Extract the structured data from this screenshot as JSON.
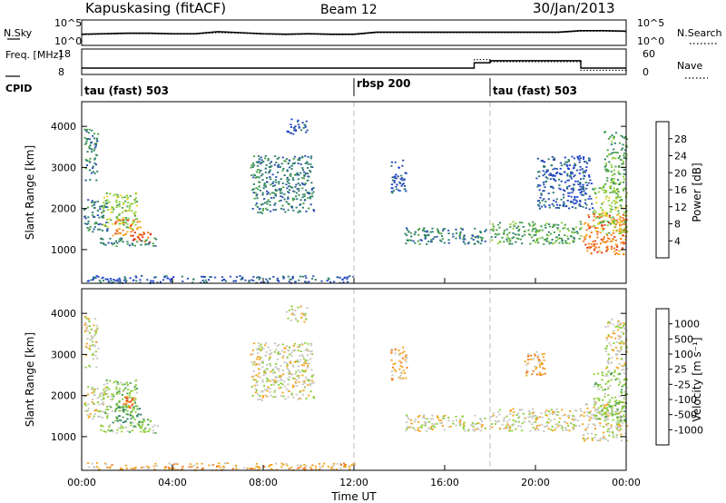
{
  "header": {
    "station": "Kapuskasing (fitACF)",
    "beam": "Beam 12",
    "date": "30/Jan/2013"
  },
  "chart_data": [
    {
      "type": "line",
      "panel": "noise",
      "left_label": "N.Sky",
      "right_label": "N.Search",
      "left_ticks": [
        "10^5",
        "10^0"
      ],
      "right_ticks": [
        "10^5",
        "10^0"
      ],
      "x": [
        "00:00",
        "01:00",
        "02:00",
        "03:00",
        "04:00",
        "05:00",
        "06:00",
        "07:00",
        "08:00",
        "09:00",
        "10:00",
        "11:00",
        "12:00",
        "13:00",
        "14:00",
        "15:00",
        "16:00",
        "17:00",
        "18:00",
        "19:00",
        "20:00",
        "21:00",
        "22:00",
        "23:00",
        "24:00"
      ],
      "series": [
        {
          "name": "N.Sky",
          "style": "solid",
          "values": [
            2.2,
            2.3,
            2.4,
            2.4,
            2.3,
            2.3,
            2.7,
            2.5,
            2.3,
            2.2,
            2.3,
            2.2,
            2.2,
            2.6,
            2.6,
            2.6,
            2.6,
            2.6,
            2.6,
            2.6,
            2.6,
            2.6,
            2.9,
            2.9,
            2.8
          ]
        },
        {
          "name": "N.Search",
          "style": "dotted",
          "values": [
            2.1,
            2.2,
            2.3,
            2.3,
            2.2,
            2.2,
            2.5,
            2.4,
            2.2,
            2.1,
            2.2,
            2.1,
            2.1,
            2.5,
            2.5,
            2.5,
            2.5,
            2.5,
            2.5,
            2.5,
            2.5,
            2.5,
            2.8,
            2.8,
            2.7
          ]
        }
      ]
    },
    {
      "type": "line",
      "panel": "frequency",
      "left_label": "Freq. [MHz]",
      "right_label": "Nave",
      "left_ticks": [
        "18",
        "8"
      ],
      "right_ticks": [
        "60",
        "0"
      ],
      "x_break_hours": [
        0,
        12,
        17.3,
        18,
        22,
        24
      ],
      "series": [
        {
          "name": "Freq.",
          "style": "solid",
          "values_mhz": [
            10.5,
            10.5,
            12.6,
            13.4,
            10.5,
            10.5
          ]
        },
        {
          "name": "Nave",
          "style": "dotted",
          "values": [
            15,
            15,
            35,
            30,
            10,
            10
          ]
        }
      ]
    },
    {
      "type": "table",
      "panel": "cpid",
      "label": "CPID",
      "segments": [
        {
          "label": "tau (fast) 503",
          "start": "00:00",
          "end": "12:00"
        },
        {
          "label": "rbsp 200",
          "start": "12:00",
          "end": "18:00"
        },
        {
          "label": "tau (fast) 503",
          "start": "18:00",
          "end": "24:00"
        }
      ]
    },
    {
      "type": "heatmap",
      "panel": "power",
      "ylabel": "Slant Range [km]",
      "ylim": [
        180,
        4600
      ],
      "yticks": [
        "1000",
        "2000",
        "3000",
        "4000"
      ],
      "colorbar_label": "Power [dB]",
      "colorbar_ticks": [
        "4",
        "8",
        "12",
        "16",
        "20",
        "24",
        "28"
      ],
      "colorbar_range": [
        0,
        32
      ],
      "colors": [
        "#1f3fd9",
        "#2a4fb0",
        "#2e7d6e",
        "#4aa14a",
        "#8fcf3a",
        "#f0d22a",
        "#f5a623",
        "#f07a1e",
        "#e43b17",
        "#d81010"
      ],
      "regions": [
        {
          "t": [
            0.05,
            1.1
          ],
          "r": [
            1450,
            2250
          ],
          "level": 2
        },
        {
          "t": [
            0.9,
            2.4
          ],
          "r": [
            1500,
            2400
          ],
          "level": 4
        },
        {
          "t": [
            1.3,
            2.6
          ],
          "r": [
            1350,
            1750
          ],
          "level": 7
        },
        {
          "t": [
            2.2,
            3.0
          ],
          "r": [
            1200,
            1450
          ],
          "level": 8
        },
        {
          "t": [
            0.8,
            3.4
          ],
          "r": [
            1100,
            1300
          ],
          "level": 2
        },
        {
          "t": [
            0.1,
            0.7
          ],
          "r": [
            2700,
            3950
          ],
          "level": 2
        },
        {
          "t": [
            7.4,
            10.2
          ],
          "r": [
            1900,
            3300
          ],
          "level": 2
        },
        {
          "t": [
            9.0,
            9.9
          ],
          "r": [
            3800,
            4200
          ],
          "level": 1
        },
        {
          "t": [
            14.2,
            17.8
          ],
          "r": [
            1150,
            1550
          ],
          "level": 2
        },
        {
          "t": [
            13.6,
            14.3
          ],
          "r": [
            2400,
            3200
          ],
          "level": 1
        },
        {
          "t": [
            18.0,
            22.0
          ],
          "r": [
            1150,
            1700
          ],
          "level": 3
        },
        {
          "t": [
            20.0,
            22.5
          ],
          "r": [
            2000,
            3300
          ],
          "level": 1
        },
        {
          "t": [
            22.0,
            24.0
          ],
          "r": [
            900,
            1900
          ],
          "level": 7
        },
        {
          "t": [
            22.5,
            24.0
          ],
          "r": [
            1400,
            2600
          ],
          "level": 4
        },
        {
          "t": [
            23.0,
            24.0
          ],
          "r": [
            2600,
            3900
          ],
          "level": 3
        },
        {
          "t": [
            0.2,
            12.0
          ],
          "r": [
            200,
            380
          ],
          "level": 1
        }
      ]
    },
    {
      "type": "heatmap",
      "panel": "velocity",
      "xlabel": "Time UT",
      "ylabel": "Slant Range [km]",
      "ylim": [
        180,
        4600
      ],
      "yticks": [
        "1000",
        "2000",
        "3000",
        "4000"
      ],
      "xticks": [
        "00:00",
        "04:00",
        "08:00",
        "12:00",
        "16:00",
        "20:00",
        "00:00"
      ],
      "xlim_hours": [
        0,
        24
      ],
      "colorbar_label": "Velocity [m s⁻¹]",
      "colorbar_ticks": [
        "1000",
        "500",
        "100",
        "25",
        "-25",
        "-100",
        "-500",
        "-1000"
      ],
      "colors": [
        "#1f3fd9",
        "#2a4fb0",
        "#2e7d6e",
        "#4aa14a",
        "#8fcf3a",
        "#c8c8c0",
        "#f5a623",
        "#f07a1e",
        "#e43b17",
        "#d81010"
      ],
      "regions": [
        {
          "t": [
            0.05,
            1.1
          ],
          "r": [
            1450,
            2250
          ],
          "level": 5
        },
        {
          "t": [
            0.9,
            2.4
          ],
          "r": [
            1500,
            2400
          ],
          "level": 4
        },
        {
          "t": [
            1.3,
            2.6
          ],
          "r": [
            1350,
            1750
          ],
          "level": 3
        },
        {
          "t": [
            2.2,
            3.0
          ],
          "r": [
            1200,
            1450
          ],
          "level": 4
        },
        {
          "t": [
            1.8,
            2.3
          ],
          "r": [
            1700,
            2000
          ],
          "level": 7
        },
        {
          "t": [
            0.8,
            3.4
          ],
          "r": [
            1100,
            1300
          ],
          "level": 4
        },
        {
          "t": [
            0.1,
            0.7
          ],
          "r": [
            2700,
            3950
          ],
          "level": 5
        },
        {
          "t": [
            7.4,
            10.2
          ],
          "r": [
            1900,
            3300
          ],
          "level": 5
        },
        {
          "t": [
            9.0,
            9.9
          ],
          "r": [
            3800,
            4200
          ],
          "level": 5
        },
        {
          "t": [
            14.2,
            17.8
          ],
          "r": [
            1150,
            1550
          ],
          "level": 5
        },
        {
          "t": [
            13.6,
            14.3
          ],
          "r": [
            2400,
            3200
          ],
          "level": 6
        },
        {
          "t": [
            18.0,
            22.0
          ],
          "r": [
            1150,
            1700
          ],
          "level": 5
        },
        {
          "t": [
            19.5,
            20.5
          ],
          "r": [
            2500,
            3100
          ],
          "level": 6
        },
        {
          "t": [
            22.0,
            24.0
          ],
          "r": [
            900,
            1900
          ],
          "level": 5
        },
        {
          "t": [
            22.5,
            24.0
          ],
          "r": [
            1400,
            2600
          ],
          "level": 4
        },
        {
          "t": [
            23.0,
            24.0
          ],
          "r": [
            2600,
            3900
          ],
          "level": 5
        },
        {
          "t": [
            0.2,
            12.0
          ],
          "r": [
            200,
            380
          ],
          "level": 6
        }
      ]
    }
  ]
}
